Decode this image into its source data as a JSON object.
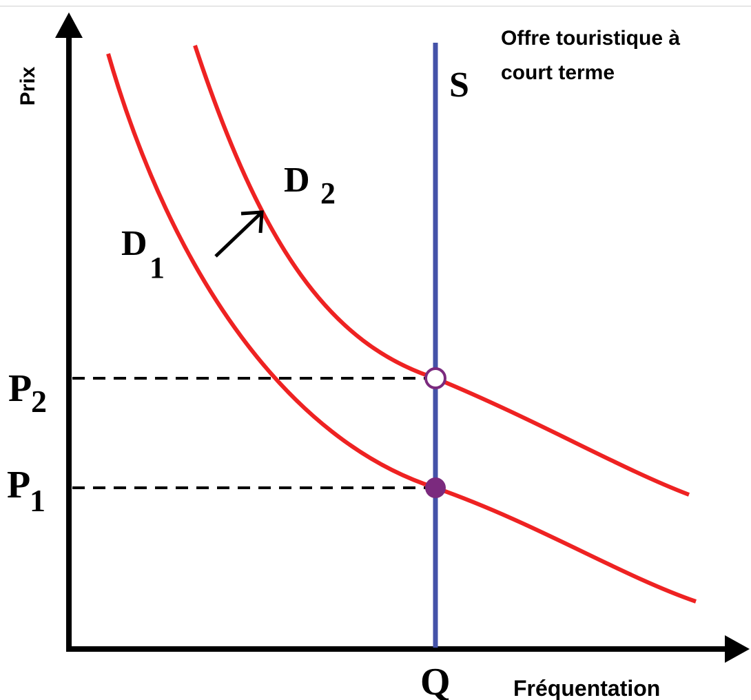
{
  "axes": {
    "y_label": "Prix",
    "x_label": "Fréquentation"
  },
  "supply": {
    "label": "S",
    "note": [
      "Offre touristique à",
      "court terme"
    ]
  },
  "demand": [
    {
      "label": "D",
      "subscript": "1"
    },
    {
      "label": "D",
      "subscript": "2"
    }
  ],
  "prices": [
    {
      "label": "P",
      "subscript": "1"
    },
    {
      "label": "P",
      "subscript": "2"
    }
  ],
  "quantity": "Q"
}
